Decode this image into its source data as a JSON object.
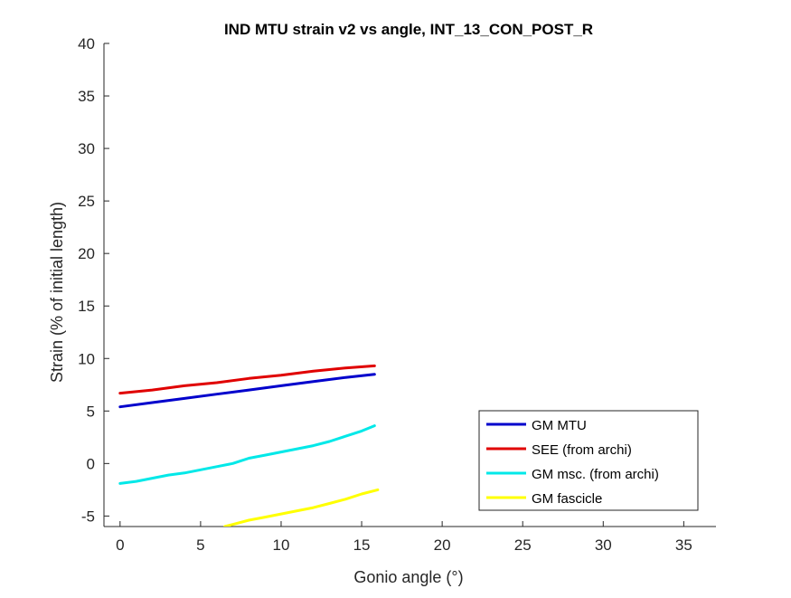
{
  "chart_data": {
    "type": "line",
    "title": "IND MTU strain v2 vs angle, INT_13_CON_POST_R",
    "xlabel": "Gonio angle (°)",
    "ylabel": "Strain (% of initial length)",
    "xlim": [
      -1,
      37
    ],
    "ylim": [
      -6,
      40
    ],
    "xticks": [
      0,
      5,
      10,
      15,
      20,
      25,
      30,
      35
    ],
    "yticks": [
      -5,
      0,
      5,
      10,
      15,
      20,
      25,
      30,
      35,
      40
    ],
    "grid": false,
    "legend_position": "bottom-right",
    "series": [
      {
        "name": "GM MTU",
        "color": "#0000CC",
        "x": [
          0,
          2,
          4,
          6,
          8,
          10,
          12,
          14,
          15.8
        ],
        "y": [
          5.4,
          5.8,
          6.2,
          6.6,
          7.0,
          7.4,
          7.8,
          8.2,
          8.5
        ]
      },
      {
        "name": "SEE (from archi)",
        "color": "#E00000",
        "x": [
          0,
          2,
          4,
          6,
          8,
          10,
          12,
          14,
          15.8
        ],
        "y": [
          6.7,
          7.0,
          7.4,
          7.7,
          8.1,
          8.4,
          8.8,
          9.1,
          9.3
        ]
      },
      {
        "name": "GM msc. (from archi)",
        "color": "#00E8E8",
        "x": [
          0,
          1,
          2,
          3,
          4,
          5,
          6,
          7,
          8,
          9,
          10,
          11,
          12,
          13,
          14,
          15,
          15.8
        ],
        "y": [
          -1.9,
          -1.7,
          -1.4,
          -1.1,
          -0.9,
          -0.6,
          -0.3,
          0.0,
          0.5,
          0.8,
          1.1,
          1.4,
          1.7,
          2.1,
          2.6,
          3.1,
          3.6
        ]
      },
      {
        "name": "GM fascicle",
        "color": "#FFFF00",
        "x": [
          6.5,
          7,
          8,
          9,
          10,
          11,
          12,
          13,
          14,
          15,
          16
        ],
        "y": [
          -6.0,
          -5.8,
          -5.4,
          -5.1,
          -4.8,
          -4.5,
          -4.2,
          -3.8,
          -3.4,
          -2.9,
          -2.5
        ]
      }
    ]
  }
}
